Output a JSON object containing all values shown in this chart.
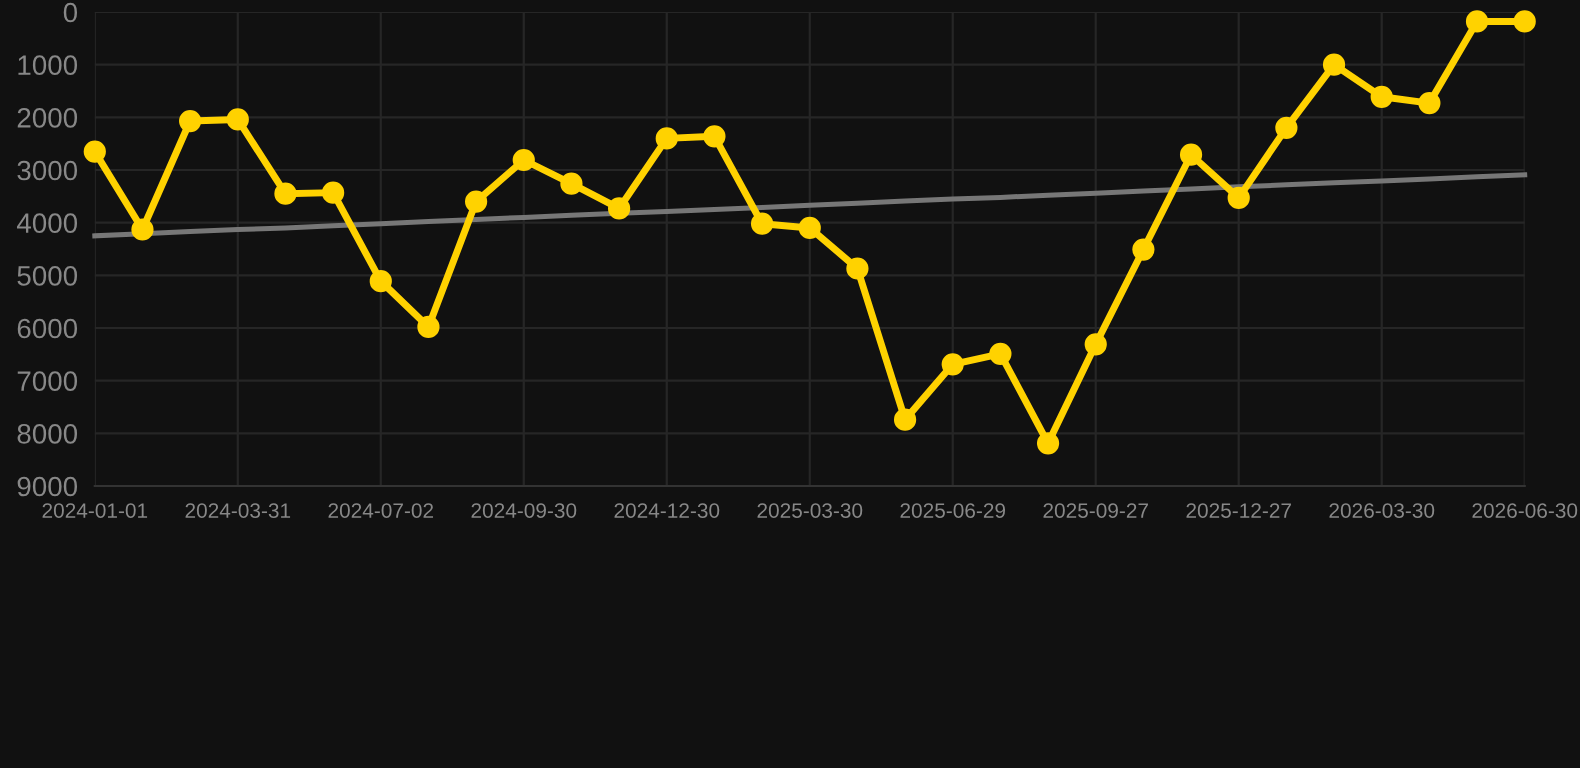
{
  "chart_data": {
    "type": "line",
    "categories": [
      "2024-01-01",
      null,
      null,
      "2024-03-31",
      null,
      null,
      "2024-07-02",
      null,
      null,
      "2024-09-30",
      null,
      null,
      "2024-12-30",
      null,
      null,
      "2025-03-30",
      null,
      null,
      "2025-06-29",
      null,
      null,
      "2025-09-27",
      null,
      null,
      "2025-12-27",
      null,
      null,
      "2026-03-30",
      null,
      null,
      "2026-06-30"
    ],
    "series": [
      {
        "color": "#ffd200",
        "marker": "circle",
        "values": [
          2650,
          4130,
          2070,
          2040,
          3450,
          3430,
          5110,
          5980,
          3600,
          2810,
          3260,
          3730,
          2400,
          2360,
          4020,
          4100,
          4870,
          7740,
          6690,
          6490,
          8190,
          6310,
          4510,
          2710,
          3530,
          2200,
          1000,
          1610,
          1730,
          180,
          180
        ]
      },
      {
        "type": "line",
        "color": "#777777",
        "marker": "none",
        "values": [
          4250,
          4210,
          4170,
          4130,
          4100,
          4060,
          4020,
          3980,
          3940,
          3900,
          3860,
          3820,
          3790,
          3750,
          3710,
          3670,
          3630,
          3590,
          3550,
          3520,
          3480,
          3440,
          3400,
          3360,
          3320,
          3280,
          3240,
          3210,
          3170,
          3130,
          3090
        ]
      }
    ],
    "ylim": [
      9000,
      0
    ],
    "yticks": [
      0,
      1000,
      2000,
      3000,
      4000,
      5000,
      6000,
      7000,
      8000,
      9000
    ],
    "grid": true,
    "legend": false
  }
}
